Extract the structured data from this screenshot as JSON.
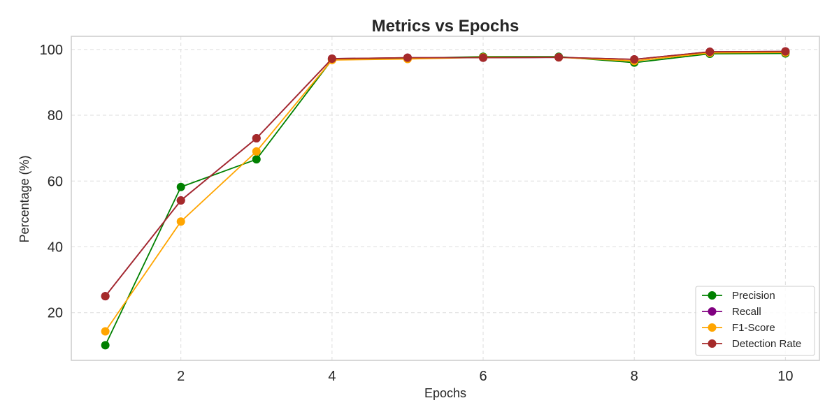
{
  "chart_data": {
    "type": "line",
    "title": "Metrics vs Epochs",
    "xlabel": "Epochs",
    "ylabel": "Percentage (%)",
    "x": [
      1,
      2,
      3,
      4,
      5,
      6,
      7,
      8,
      9,
      10
    ],
    "xlim": [
      0.55,
      10.45
    ],
    "ylim": [
      5.5,
      104
    ],
    "xticks": [
      2,
      4,
      6,
      8,
      10
    ],
    "yticks": [
      20,
      40,
      60,
      80,
      100
    ],
    "grid": true,
    "legend_position": "bottom-right",
    "series": [
      {
        "name": "Precision",
        "color": "#008000",
        "values": [
          10.1,
          58.2,
          66.6,
          96.9,
          97.3,
          97.8,
          97.8,
          96.0,
          98.7,
          98.8
        ]
      },
      {
        "name": "Recall",
        "color": "#800080",
        "values": [
          25.0,
          54.1,
          73.0,
          97.2,
          97.5,
          97.5,
          97.6,
          97.0,
          99.3,
          99.4
        ]
      },
      {
        "name": "F1-Score",
        "color": "#FFA500",
        "values": [
          14.3,
          47.7,
          69.0,
          96.8,
          97.1,
          97.6,
          97.6,
          96.5,
          99.0,
          99.1
        ]
      },
      {
        "name": "Detection Rate",
        "color": "#A52A2A",
        "values": [
          25.0,
          54.1,
          73.0,
          97.2,
          97.5,
          97.5,
          97.6,
          97.0,
          99.3,
          99.4
        ]
      }
    ]
  }
}
